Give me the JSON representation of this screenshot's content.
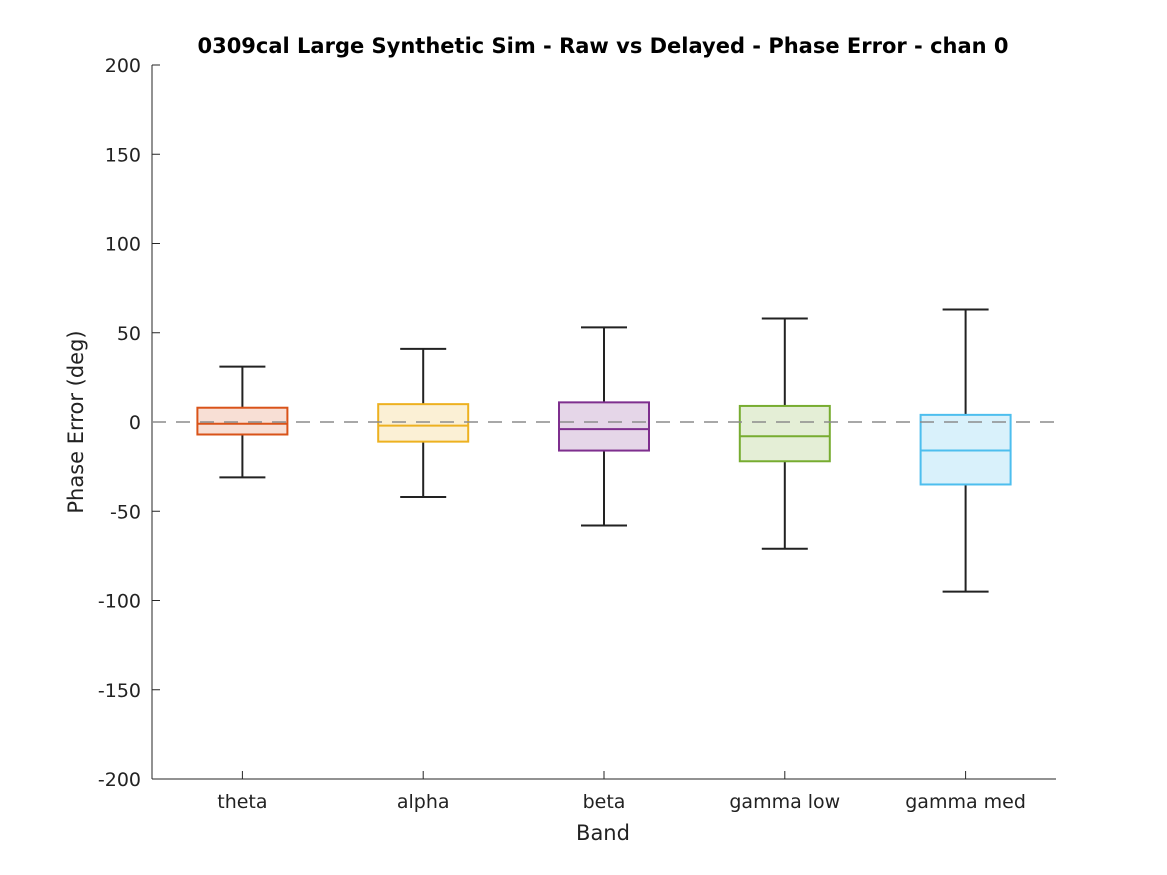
{
  "chart_data": {
    "type": "box",
    "title": "0309cal Large Synthetic Sim - Raw vs Delayed - Phase Error - chan 0",
    "xlabel": "Band",
    "ylabel": "Phase Error (deg)",
    "ylim": [
      -200,
      200
    ],
    "yticks": [
      200,
      150,
      100,
      50,
      0,
      -50,
      -100,
      -150,
      -200
    ],
    "ytick_labels": [
      "200",
      "150",
      "100",
      "50",
      "0",
      "-50",
      "-100",
      "-150",
      "-200"
    ],
    "reference_line": {
      "y": 0,
      "style": "dashed",
      "color": "#8c8c8c"
    },
    "grid": false,
    "categories": [
      "theta",
      "alpha",
      "beta",
      "gamma low",
      "gamma med"
    ],
    "boxes": [
      {
        "category": "theta",
        "whisker_low": -31,
        "q1": -7,
        "median": -1,
        "q3": 8,
        "whisker_high": 31,
        "color": "#d95319",
        "fill": "#f8dfd5"
      },
      {
        "category": "alpha",
        "whisker_low": -42,
        "q1": -11,
        "median": -2,
        "q3": 10,
        "whisker_high": 41,
        "color": "#edb120",
        "fill": "#fbf0d5"
      },
      {
        "category": "beta",
        "whisker_low": -58,
        "q1": -16,
        "median": -4,
        "q3": 11,
        "whisker_high": 53,
        "color": "#7e2f8e",
        "fill": "#e5d6e8"
      },
      {
        "category": "gamma low",
        "whisker_low": -71,
        "q1": -22,
        "median": -8,
        "q3": 9,
        "whisker_high": 58,
        "color": "#77ac30",
        "fill": "#e4eed6"
      },
      {
        "category": "gamma med",
        "whisker_low": -95,
        "q1": -35,
        "median": -16,
        "q3": 4,
        "whisker_high": 63,
        "color": "#4dbeee",
        "fill": "#d9f1fb"
      }
    ]
  }
}
